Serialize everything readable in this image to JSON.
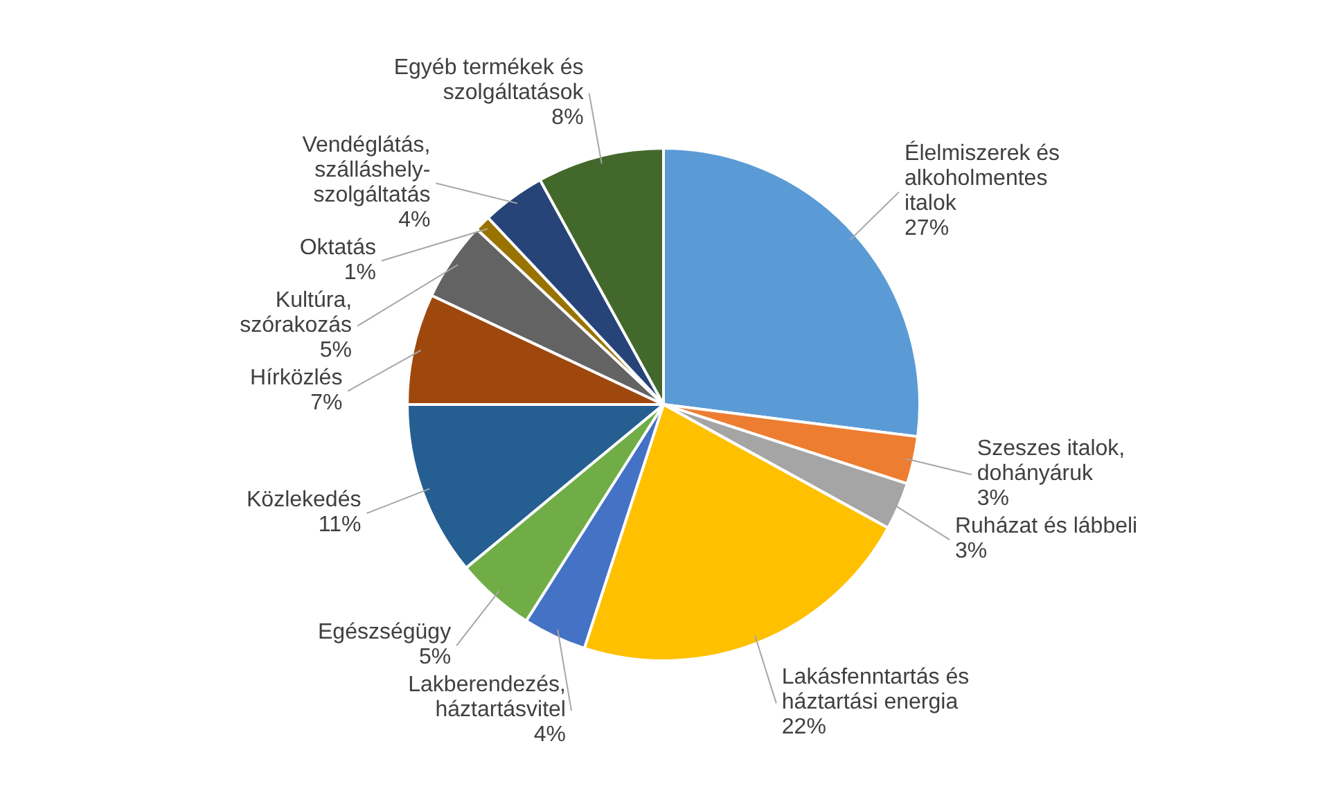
{
  "chart_data": {
    "type": "pie",
    "categories": [
      "Élelmiszerek és alkoholmentes italok",
      "Szeszes italok, dohányáruk",
      "Ruházat és lábbeli",
      "Lakásfenntartás és háztartási energia",
      "Lakberendezés, háztartásvitel",
      "Egészségügy",
      "Közlekedés",
      "Hírközlés",
      "Kultúra, szórakozás",
      "Oktatás",
      "Vendéglátás, szálláshely-szolgáltatás",
      "Egyéb termékek és szolgáltatások"
    ],
    "values": [
      27,
      3,
      3,
      22,
      4,
      5,
      11,
      7,
      5,
      1,
      4,
      8
    ],
    "value_labels": [
      "27%",
      "3%",
      "3%",
      "22%",
      "4%",
      "5%",
      "11%",
      "7%",
      "5%",
      "1%",
      "4%",
      "8%"
    ],
    "colors": [
      "#5b9bd5",
      "#ed7d31",
      "#a5a5a5",
      "#ffc000",
      "#4472c4",
      "#70ad47",
      "#255e91",
      "#9e480e",
      "#636363",
      "#997300",
      "#264478",
      "#43682b"
    ]
  }
}
